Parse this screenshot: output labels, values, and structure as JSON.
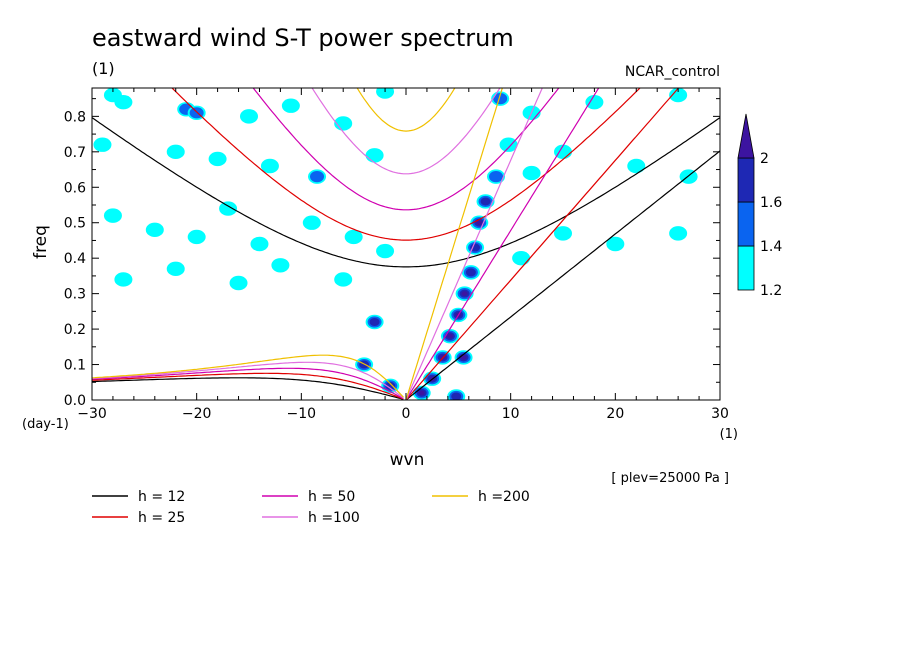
{
  "chart_data": {
    "type": "heatmap",
    "title": "eastward wind S-T power spectrum",
    "units_top_left": "(1)",
    "case_name": "NCAR_control",
    "xlabel": "wvn",
    "ylabel": "freq",
    "x_units": "(1)",
    "y_units": "(day-1)",
    "plev_note": "[ plev=25000 Pa ]",
    "xlim": [
      -30,
      30
    ],
    "ylim": [
      0,
      0.88
    ],
    "xticks": [
      "−30",
      "−20",
      "−10",
      "0",
      "10",
      "20",
      "30"
    ],
    "yticks": [
      "0.0",
      "0.1",
      "0.2",
      "0.3",
      "0.4",
      "0.5",
      "0.6",
      "0.7",
      "0.8"
    ],
    "grid": false,
    "colorbar": {
      "levels": [
        "1.2",
        "1.4",
        "1.6",
        "2"
      ],
      "colors": [
        "#00ffff",
        "#0a64f0",
        "#1e28b4",
        "#3c14a0"
      ]
    },
    "contours": [
      {
        "x": -28,
        "y": 0.86,
        "level": 1
      },
      {
        "x": -27,
        "y": 0.84,
        "level": 1
      },
      {
        "x": -21,
        "y": 0.82,
        "level": 2
      },
      {
        "x": -20,
        "y": 0.81,
        "level": 2
      },
      {
        "x": -15,
        "y": 0.8,
        "level": 1
      },
      {
        "x": -11,
        "y": 0.83,
        "level": 1
      },
      {
        "x": -6,
        "y": 0.78,
        "level": 1
      },
      {
        "x": -2,
        "y": 0.87,
        "level": 1
      },
      {
        "x": 9,
        "y": 0.85,
        "level": 2
      },
      {
        "x": 12,
        "y": 0.81,
        "level": 1
      },
      {
        "x": 18,
        "y": 0.84,
        "level": 1
      },
      {
        "x": 26,
        "y": 0.86,
        "level": 1
      },
      {
        "x": -29,
        "y": 0.72,
        "level": 1
      },
      {
        "x": -22,
        "y": 0.7,
        "level": 1
      },
      {
        "x": -18,
        "y": 0.68,
        "level": 1
      },
      {
        "x": -13,
        "y": 0.66,
        "level": 1
      },
      {
        "x": -8.5,
        "y": 0.63,
        "level": 2
      },
      {
        "x": -3,
        "y": 0.69,
        "level": 1
      },
      {
        "x": 12,
        "y": 0.64,
        "level": 1
      },
      {
        "x": 15,
        "y": 0.7,
        "level": 1
      },
      {
        "x": 22,
        "y": 0.66,
        "level": 1
      },
      {
        "x": 27,
        "y": 0.63,
        "level": 1
      },
      {
        "x": -28,
        "y": 0.52,
        "level": 1
      },
      {
        "x": -24,
        "y": 0.48,
        "level": 1
      },
      {
        "x": -20,
        "y": 0.46,
        "level": 1
      },
      {
        "x": -17,
        "y": 0.54,
        "level": 1
      },
      {
        "x": -14,
        "y": 0.44,
        "level": 1
      },
      {
        "x": -9,
        "y": 0.5,
        "level": 1
      },
      {
        "x": -5,
        "y": 0.46,
        "level": 1
      },
      {
        "x": -2,
        "y": 0.42,
        "level": 1
      },
      {
        "x": -27,
        "y": 0.34,
        "level": 1
      },
      {
        "x": -22,
        "y": 0.37,
        "level": 1
      },
      {
        "x": -16,
        "y": 0.33,
        "level": 1
      },
      {
        "x": -12,
        "y": 0.38,
        "level": 1
      },
      {
        "x": -6,
        "y": 0.34,
        "level": 1
      },
      {
        "x": 11,
        "y": 0.4,
        "level": 1
      },
      {
        "x": 15,
        "y": 0.47,
        "level": 1
      },
      {
        "x": 20,
        "y": 0.44,
        "level": 1
      },
      {
        "x": 26,
        "y": 0.47,
        "level": 1
      },
      {
        "x": -3,
        "y": 0.22,
        "level": 3
      },
      {
        "x": -4,
        "y": 0.1,
        "level": 3
      },
      {
        "x": -1.5,
        "y": 0.04,
        "level": 3
      },
      {
        "x": 1.5,
        "y": 0.02,
        "level": 4
      },
      {
        "x": 2.5,
        "y": 0.06,
        "level": 4
      },
      {
        "x": 3.5,
        "y": 0.12,
        "level": 4
      },
      {
        "x": 4.2,
        "y": 0.18,
        "level": 4
      },
      {
        "x": 5,
        "y": 0.24,
        "level": 4
      },
      {
        "x": 5.6,
        "y": 0.3,
        "level": 4
      },
      {
        "x": 6.2,
        "y": 0.36,
        "level": 3
      },
      {
        "x": 6.6,
        "y": 0.43,
        "level": 3
      },
      {
        "x": 7.0,
        "y": 0.5,
        "level": 4
      },
      {
        "x": 7.6,
        "y": 0.56,
        "level": 3
      },
      {
        "x": 8.6,
        "y": 0.63,
        "level": 2
      },
      {
        "x": 9.8,
        "y": 0.72,
        "level": 1
      },
      {
        "x": 5.5,
        "y": 0.12,
        "level": 4
      },
      {
        "x": 4.8,
        "y": 0.01,
        "level": 3
      }
    ],
    "series": [
      {
        "name": "h = 12",
        "color": "#000000",
        "equiv_depth": 12
      },
      {
        "name": "h = 25",
        "color": "#e00000",
        "equiv_depth": 25
      },
      {
        "name": "h = 50",
        "color": "#d000b0",
        "equiv_depth": 50
      },
      {
        "name": "h =100",
        "color": "#e070e0",
        "equiv_depth": 100
      },
      {
        "name": "h =200",
        "color": "#f0c000",
        "equiv_depth": 200
      }
    ]
  }
}
